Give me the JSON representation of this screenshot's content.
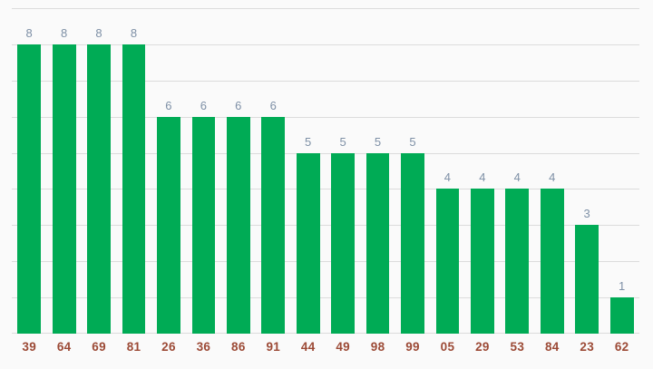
{
  "chart_data": {
    "type": "bar",
    "categories": [
      "39",
      "64",
      "69",
      "81",
      "26",
      "36",
      "86",
      "91",
      "44",
      "49",
      "98",
      "99",
      "05",
      "29",
      "53",
      "84",
      "23",
      "62"
    ],
    "values": [
      8,
      8,
      8,
      8,
      6,
      6,
      6,
      6,
      5,
      5,
      5,
      5,
      4,
      4,
      4,
      4,
      3,
      1
    ],
    "title": "",
    "xlabel": "",
    "ylabel": "",
    "ylim": [
      0,
      9
    ],
    "grid": true,
    "gridline_step": 1,
    "legend_position": "none",
    "value_labels_shown": true,
    "y_axis_tick_labels_shown": false
  },
  "colors": {
    "background": "#fafafa",
    "bar": "#00ab55",
    "gridline": "#dcdcdc",
    "value_label": "#7e90a6",
    "x_axis_label": "#9c4a36"
  }
}
